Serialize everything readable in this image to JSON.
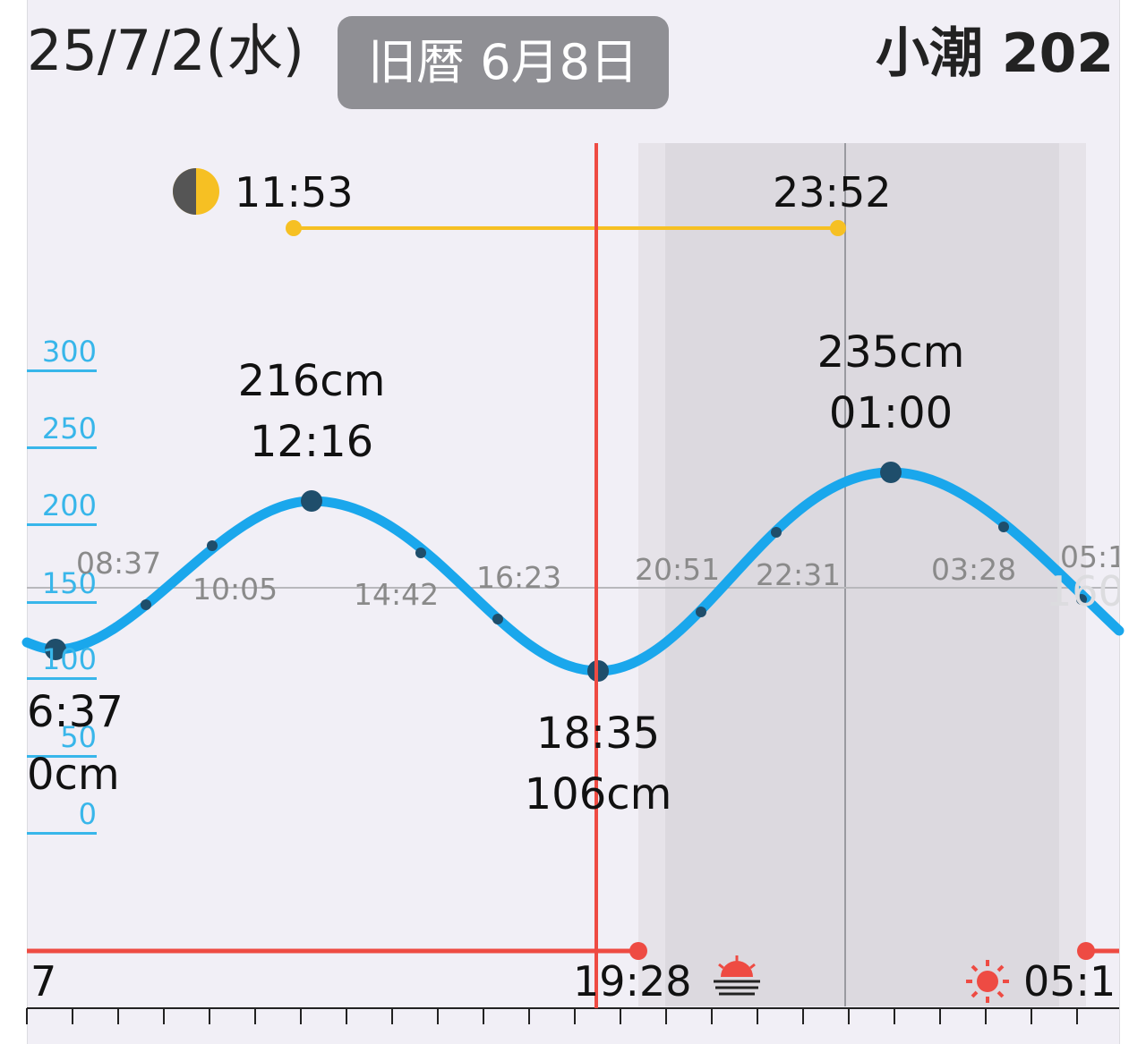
{
  "header": {
    "date": "25/7/2(水)",
    "lunar": "旧暦 6月8日",
    "tide_name": "小潮 202"
  },
  "moon": {
    "icon": "half-moon-icon",
    "rise": "11:53",
    "set": "23:52"
  },
  "y_axis": {
    "labels": [
      "300",
      "250",
      "200",
      "150",
      "100",
      "50",
      "0"
    ],
    "unit": "cm"
  },
  "tides": {
    "left_low_time": "6:37",
    "left_low_height": "0cm",
    "high1_height": "216cm",
    "high1_time": "12:16",
    "low_time": "18:35",
    "low_height": "106cm",
    "high2_height": "235cm",
    "high2_time": "01:00"
  },
  "intermediate_times": [
    "08:37",
    "10:05",
    "14:42",
    "16:23",
    "20:51",
    "22:31",
    "03:28",
    "05:1"
  ],
  "mid_level_label": "160",
  "sun": {
    "left_label": "7",
    "sunset": "19:28",
    "sunrise": "05:1",
    "sunset_icon": "sunset-icon",
    "sunrise_icon": "sun-icon"
  },
  "colors": {
    "tide_curve": "#1aa7ec",
    "tide_points": "#1f4e6b",
    "moon_line": "#f6c023",
    "current_time": "#ee4b43",
    "axis_labels": "#38b6ea",
    "night_shade": "#dcd9df"
  }
}
